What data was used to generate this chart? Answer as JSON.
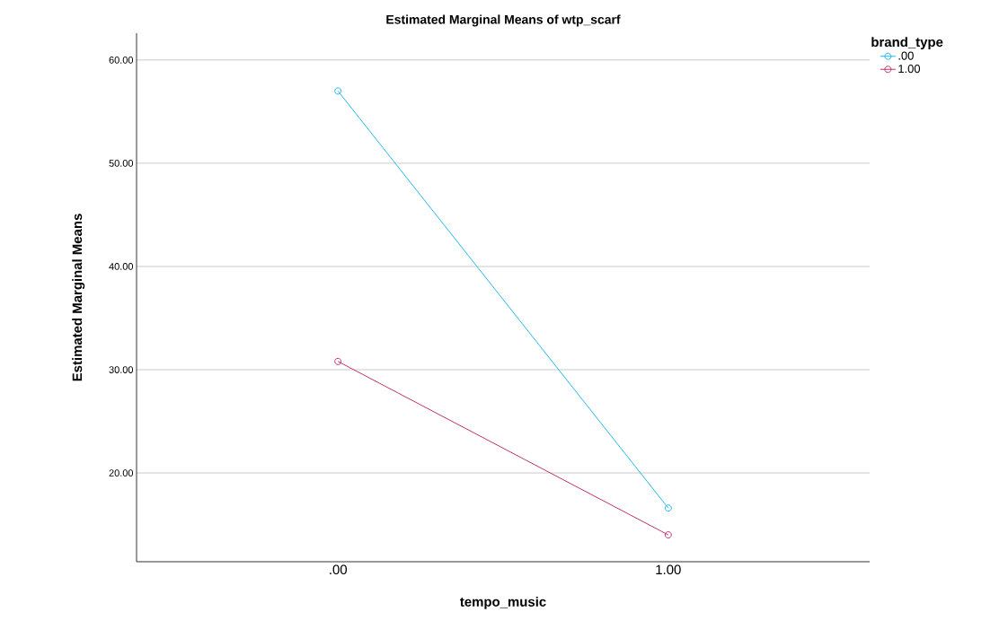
{
  "chart_data": {
    "type": "line",
    "title": "Estimated Marginal Means of wtp_scarf",
    "xlabel": "tempo_music",
    "ylabel": "Estimated Marginal Means",
    "legend_title": "brand_type",
    "categories": [
      ".00",
      "1.00"
    ],
    "series": [
      {
        "name": ".00",
        "color": "#1fb8f0",
        "values": [
          57.0,
          16.6
        ]
      },
      {
        "name": "1.00",
        "color": "#c0306a",
        "values": [
          30.8,
          14.0
        ]
      }
    ],
    "ylim": [
      11.4,
      62.6
    ],
    "yticks": [
      {
        "value": 20,
        "label": "20.00"
      },
      {
        "value": 30,
        "label": "30.00"
      },
      {
        "value": 40,
        "label": "40.00"
      },
      {
        "value": 50,
        "label": "50.00"
      },
      {
        "value": 60,
        "label": "60.00"
      }
    ],
    "grid": "y",
    "legend": "top right",
    "marker": "circle",
    "line_style": "solid"
  }
}
